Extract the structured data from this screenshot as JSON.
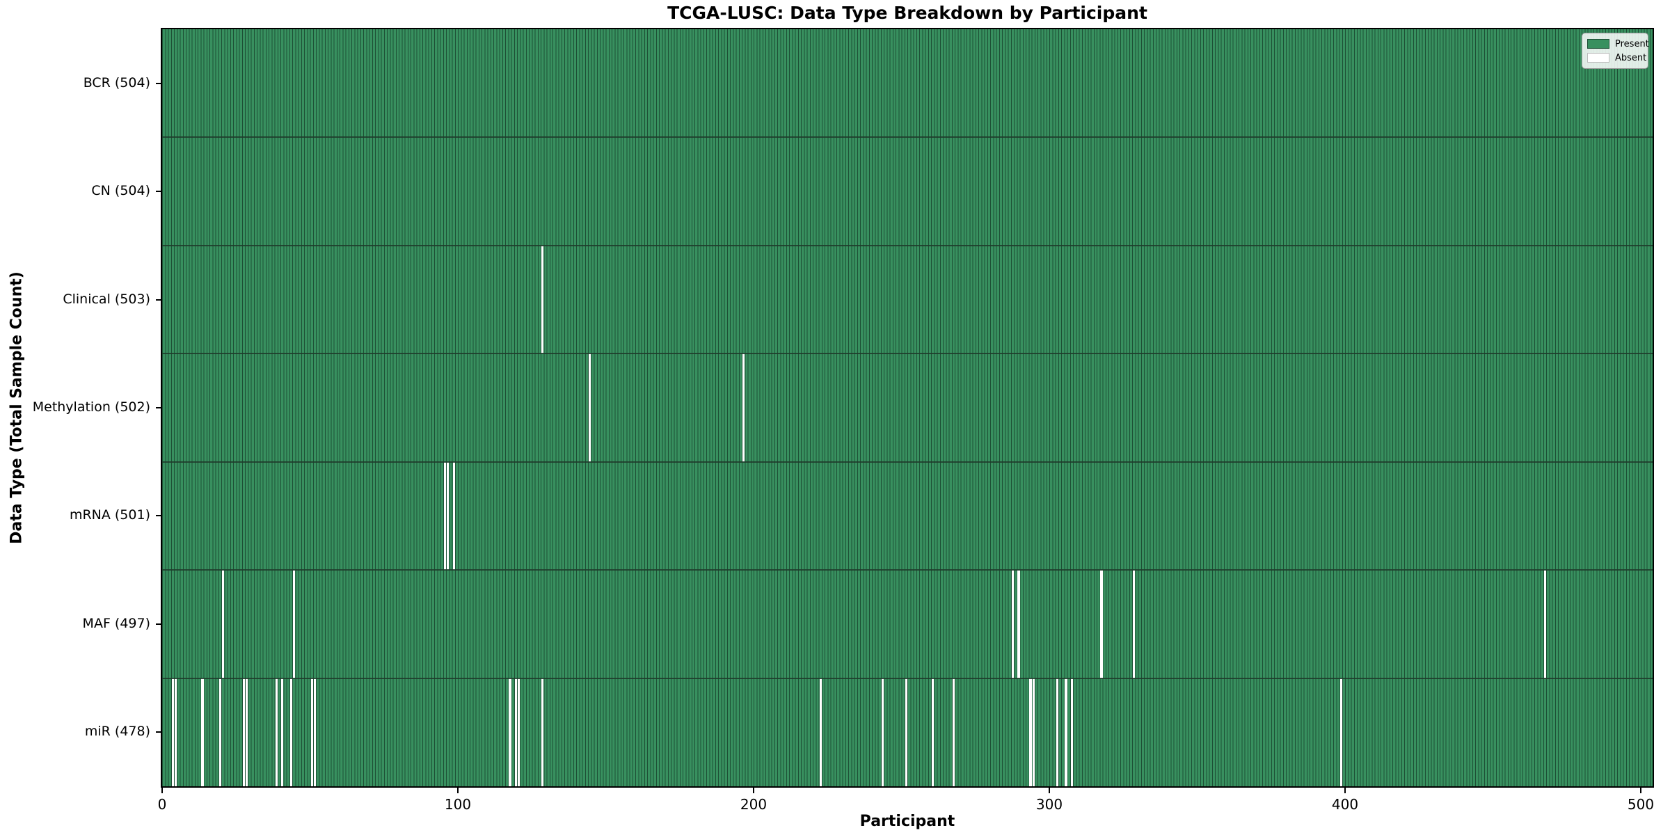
{
  "chart_data": {
    "type": "heatmap",
    "title": "TCGA-LUSC: Data Type Breakdown by Participant",
    "xlabel": "Participant",
    "ylabel": "Data Type (Total Sample Count)",
    "x_ticks": [
      0,
      100,
      200,
      300,
      400,
      500
    ],
    "n_participants": 504,
    "grid": false,
    "legend_position": "upper right",
    "legend": [
      {
        "label": "Present",
        "value": "present"
      },
      {
        "label": "Absent",
        "value": "absent"
      }
    ],
    "rows": [
      {
        "label": "BCR (504)",
        "name": "BCR",
        "total": 504,
        "absent": []
      },
      {
        "label": "CN (504)",
        "name": "CN",
        "total": 504,
        "absent": []
      },
      {
        "label": "Clinical (503)",
        "name": "Clinical",
        "total": 503,
        "absent": [
          128
        ]
      },
      {
        "label": "Methylation (502)",
        "name": "Methylation",
        "total": 502,
        "absent": [
          144,
          196
        ]
      },
      {
        "label": "mRNA (501)",
        "name": "mRNA",
        "total": 501,
        "absent": [
          95,
          96,
          98
        ]
      },
      {
        "label": "MAF (497)",
        "name": "MAF",
        "total": 497,
        "absent": [
          20,
          44,
          287,
          289,
          317,
          328,
          467
        ]
      },
      {
        "label": "miR (478)",
        "name": "miR",
        "total": 478,
        "absent": [
          3,
          4,
          13,
          19,
          27,
          28,
          38,
          40,
          43,
          50,
          51,
          117,
          119,
          120,
          128,
          222,
          243,
          251,
          260,
          267,
          293,
          294,
          302,
          305,
          307,
          398
        ]
      }
    ]
  },
  "colors": {
    "present_fill": "#38905f",
    "bar_edge": "#1d4f35",
    "absent_fill": "#ffffff",
    "row_divider": "#1e3b2a",
    "spine": "#000000",
    "absent_swatch_border": "#bbbbbb"
  }
}
